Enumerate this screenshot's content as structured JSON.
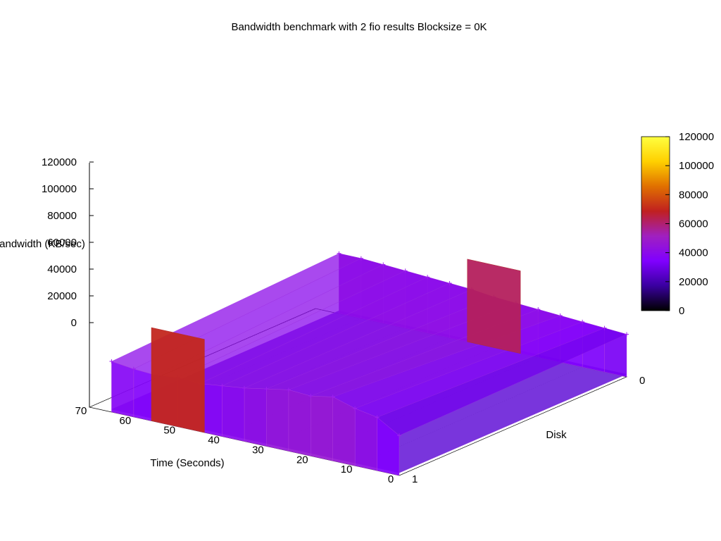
{
  "chart_data": {
    "type": "surface3d",
    "title": "Bandwidth benchmark with 2 fio results  Blocksize = 0K",
    "zlabel": "Bandwidth (KB/sec)",
    "xlabel": "Time (Seconds)",
    "ylabel": "Disk",
    "x_ticks": [
      "0",
      "10",
      "20",
      "30",
      "40",
      "50",
      "60",
      "70"
    ],
    "y_ticks": [
      "0",
      "1"
    ],
    "z_ticks": [
      "0",
      "20000",
      "40000",
      "60000",
      "80000",
      "100000",
      "120000"
    ],
    "xlim": [
      0,
      70
    ],
    "ylim": [
      0,
      1
    ],
    "zlim": [
      0,
      120000
    ],
    "colorbar": {
      "ticks": [
        "0",
        "20000",
        "40000",
        "60000",
        "80000",
        "100000",
        "120000"
      ],
      "range": [
        0,
        120000
      ],
      "palette": [
        "#000000",
        "#3a00a0",
        "#8000ff",
        "#a020c0",
        "#c02020",
        "#e07000",
        "#ffd000",
        "#ffff40"
      ]
    },
    "series": [
      {
        "y": 0,
        "x": [
          0,
          5,
          10,
          15,
          20,
          25,
          30,
          35,
          40,
          45,
          50,
          55,
          60,
          65
        ],
        "values": [
          32000,
          33000,
          34000,
          35000,
          36000,
          37000,
          38000,
          40000,
          41000,
          42000,
          43000,
          44000,
          45000,
          45000
        ]
      },
      {
        "y": 1,
        "x": [
          0,
          5,
          10,
          15,
          20,
          25,
          30,
          35,
          40,
          45,
          50,
          55,
          60,
          65
        ],
        "values": [
          30000,
          40000,
          43000,
          48000,
          45000,
          46000,
          43000,
          40000,
          38000,
          36000,
          37000,
          35000,
          36000,
          38000
        ]
      }
    ],
    "peaks": [
      {
        "x": 50,
        "y": 1,
        "value": 70000
      },
      {
        "x": 30,
        "y": 0,
        "value": 62000
      }
    ],
    "grid": true
  }
}
